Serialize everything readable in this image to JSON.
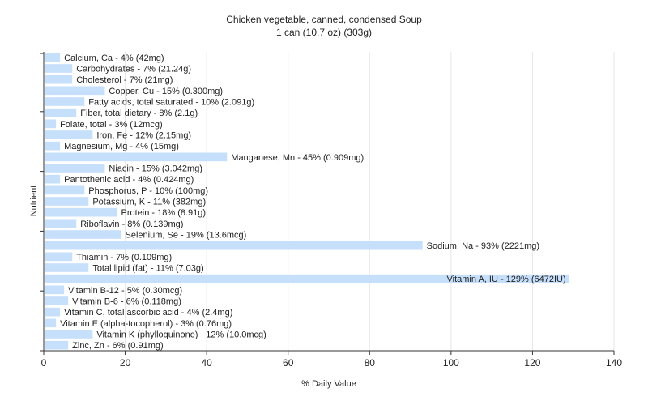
{
  "chart_data": {
    "type": "bar",
    "orientation": "horizontal",
    "title": "Chicken vegetable, canned, condensed Soup",
    "subtitle": "1 can (10.7 oz) (303g)",
    "xlabel": "% Daily Value",
    "ylabel": "Nutrient",
    "xlim": [
      0,
      140
    ],
    "xticks": [
      "0",
      "20",
      "40",
      "60",
      "80",
      "100",
      "120",
      "140"
    ],
    "grid": true,
    "bar_color": "#c6dffb",
    "categories": [
      "Calcium, Ca - 4% (42mg)",
      "Carbohydrates - 7% (21.24g)",
      "Cholesterol - 7% (21mg)",
      "Copper, Cu - 15% (0.300mg)",
      "Fatty acids, total saturated - 10% (2.091g)",
      "Fiber, total dietary - 8% (2.1g)",
      "Folate, total - 3% (12mcg)",
      "Iron, Fe - 12% (2.15mg)",
      "Magnesium, Mg - 4% (15mg)",
      "Manganese, Mn - 45% (0.909mg)",
      "Niacin - 15% (3.042mg)",
      "Pantothenic acid - 4% (0.424mg)",
      "Phosphorus, P - 10% (100mg)",
      "Potassium, K - 11% (382mg)",
      "Protein - 18% (8.91g)",
      "Riboflavin - 8% (0.139mg)",
      "Selenium, Se - 19% (13.6mcg)",
      "Sodium, Na - 93% (2221mg)",
      "Thiamin - 7% (0.109mg)",
      "Total lipid (fat) - 11% (7.03g)",
      "Vitamin A, IU - 129% (6472IU)",
      "Vitamin B-12 - 5% (0.30mcg)",
      "Vitamin B-6 - 6% (0.118mg)",
      "Vitamin C, total ascorbic acid - 4% (2.4mg)",
      "Vitamin E (alpha-tocopherol) - 3% (0.76mg)",
      "Vitamin K (phylloquinone) - 12% (10.0mcg)",
      "Zinc, Zn - 6% (0.91mg)"
    ],
    "values": [
      4,
      7,
      7,
      15,
      10,
      8,
      3,
      12,
      4,
      45,
      15,
      4,
      10,
      11,
      18,
      8,
      19,
      93,
      7,
      11,
      129,
      5,
      6,
      4,
      3,
      12,
      6
    ]
  }
}
